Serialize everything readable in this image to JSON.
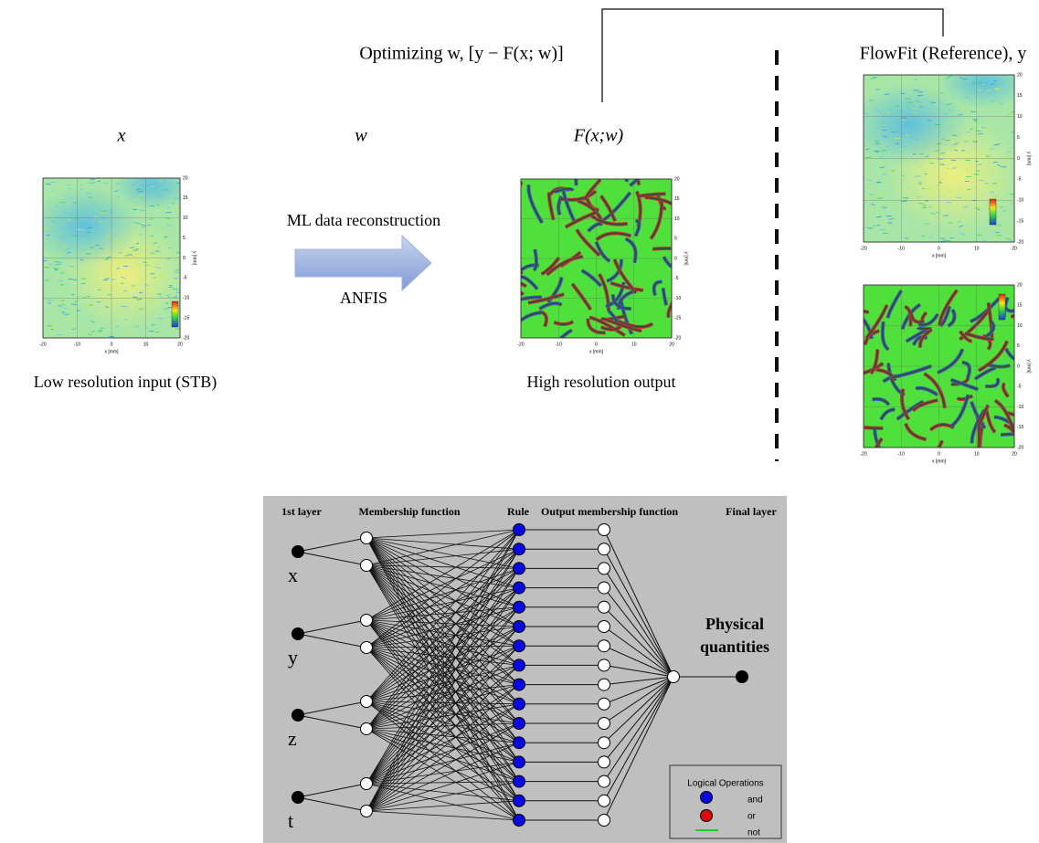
{
  "header": {
    "optimizing": "Optimizing w, [y − F(x; w)]",
    "reference": "FlowFit (Reference), y"
  },
  "symbols": {
    "input": "x",
    "weights": "w",
    "output": "F(x;w)"
  },
  "arrow": {
    "top": "ML data reconstruction",
    "bottom": "ANFIS"
  },
  "captions": {
    "input": "Low resolution input (STB)",
    "output": "High resolution output"
  },
  "plots": {
    "x_ticks": [
      "-20",
      "-10",
      "0",
      "10",
      "20"
    ],
    "y_ticks": [
      "20",
      "15",
      "10",
      "5",
      "0",
      "-5",
      "-10",
      "-15",
      "-20"
    ],
    "x_label": "x [mm]",
    "y_label": "y [mm]"
  },
  "network": {
    "columns": [
      "1st layer",
      "Membership function",
      "Rule",
      "Output membership function",
      "Final layer"
    ],
    "inputs": [
      "x",
      "y",
      "z",
      "t"
    ],
    "output_label": [
      "Physical",
      "quantities"
    ],
    "legend": {
      "title": "Logical Operations",
      "items": [
        "and",
        "or",
        "not"
      ]
    }
  }
}
